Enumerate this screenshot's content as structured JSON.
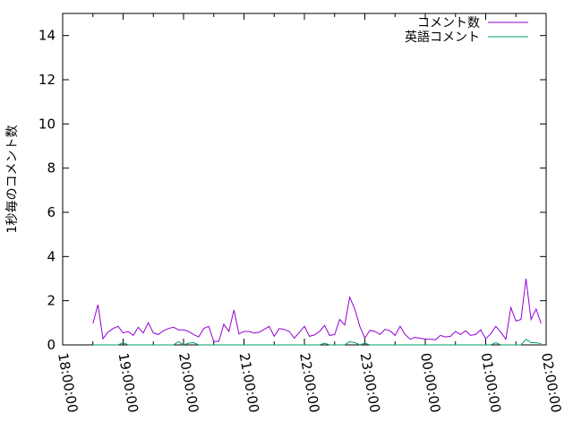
{
  "chart_data": {
    "type": "line",
    "title": "",
    "xlabel": "",
    "ylabel": "1秒毎のコメント数",
    "xlim": [
      "18:00:00",
      "02:00:00"
    ],
    "ylim": [
      0,
      15
    ],
    "yticks": [
      0,
      2,
      4,
      6,
      8,
      10,
      12,
      14
    ],
    "xticks": [
      "18:00:00",
      "19:00:00",
      "20:00:00",
      "21:00:00",
      "22:00:00",
      "23:00:00",
      "00:00:00",
      "01:00:00",
      "02:00:00"
    ],
    "grid": false,
    "legend_position": "top-right",
    "x": [
      "18:30",
      "18:35",
      "18:40",
      "18:45",
      "18:50",
      "18:55",
      "19:00",
      "19:05",
      "19:10",
      "19:15",
      "19:20",
      "19:25",
      "19:30",
      "19:35",
      "19:40",
      "19:45",
      "19:50",
      "19:55",
      "20:00",
      "20:05",
      "20:10",
      "20:15",
      "20:20",
      "20:25",
      "20:30",
      "20:35",
      "20:40",
      "20:45",
      "20:50",
      "20:55",
      "21:00",
      "21:05",
      "21:10",
      "21:15",
      "21:20",
      "21:25",
      "21:30",
      "21:35",
      "21:40",
      "21:45",
      "21:50",
      "21:55",
      "22:00",
      "22:05",
      "22:10",
      "22:15",
      "22:20",
      "22:25",
      "22:30",
      "22:35",
      "22:40",
      "22:45",
      "22:50",
      "22:55",
      "23:00",
      "23:05",
      "23:10",
      "23:15",
      "23:20",
      "23:25",
      "23:30",
      "23:35",
      "23:40",
      "23:45",
      "23:50",
      "23:55",
      "00:00",
      "00:05",
      "00:10",
      "00:15",
      "00:20",
      "00:25",
      "00:30",
      "00:35",
      "00:40",
      "00:45",
      "00:50",
      "00:55",
      "01:00",
      "01:05",
      "01:10",
      "01:15",
      "01:20",
      "01:25",
      "01:30",
      "01:35",
      "01:40",
      "01:45",
      "01:50",
      "01:55"
    ],
    "series": [
      {
        "name": "コメント数",
        "color": "#9400d3",
        "values": [
          0.97,
          1.82,
          0.28,
          0.58,
          0.74,
          0.84,
          0.54,
          0.61,
          0.43,
          0.8,
          0.54,
          1.0,
          0.54,
          0.47,
          0.64,
          0.74,
          0.8,
          0.68,
          0.68,
          0.61,
          0.47,
          0.36,
          0.74,
          0.84,
          0.16,
          0.16,
          0.94,
          0.61,
          1.58,
          0.5,
          0.61,
          0.61,
          0.53,
          0.57,
          0.7,
          0.84,
          0.39,
          0.74,
          0.7,
          0.61,
          0.31,
          0.57,
          0.84,
          0.39,
          0.45,
          0.61,
          0.88,
          0.43,
          0.47,
          1.15,
          0.9,
          2.16,
          1.62,
          0.84,
          0.3,
          0.66,
          0.61,
          0.47,
          0.7,
          0.64,
          0.43,
          0.84,
          0.47,
          0.26,
          0.34,
          0.3,
          0.26,
          0.26,
          0.23,
          0.43,
          0.36,
          0.39,
          0.61,
          0.47,
          0.64,
          0.43,
          0.47,
          0.68,
          0.28,
          0.5,
          0.84,
          0.57,
          0.26,
          1.69,
          1.08,
          1.15,
          3.0,
          1.15,
          1.62,
          0.97
        ]
      },
      {
        "name": "英語コメント",
        "color": "#009e73",
        "values": [
          0,
          0,
          0,
          0,
          0,
          0,
          0.1,
          0,
          0,
          0,
          0,
          0,
          0,
          0,
          0,
          0,
          0,
          0.15,
          0,
          0.08,
          0.1,
          0,
          0,
          0,
          0,
          0,
          0,
          0,
          0,
          0,
          0,
          0,
          0,
          0,
          0,
          0,
          0,
          0,
          0,
          0,
          0,
          0,
          0,
          0,
          0,
          0,
          0.08,
          0,
          0,
          0,
          0,
          0.15,
          0.1,
          0,
          0.08,
          0,
          0,
          0,
          0,
          0,
          0,
          0,
          0,
          0,
          0,
          0,
          0,
          0,
          0,
          0,
          0,
          0,
          0,
          0,
          0,
          0,
          0,
          0,
          0,
          0,
          0.1,
          0,
          0,
          0,
          0,
          0,
          0.25,
          0.1,
          0.1,
          0.05
        ]
      }
    ]
  }
}
